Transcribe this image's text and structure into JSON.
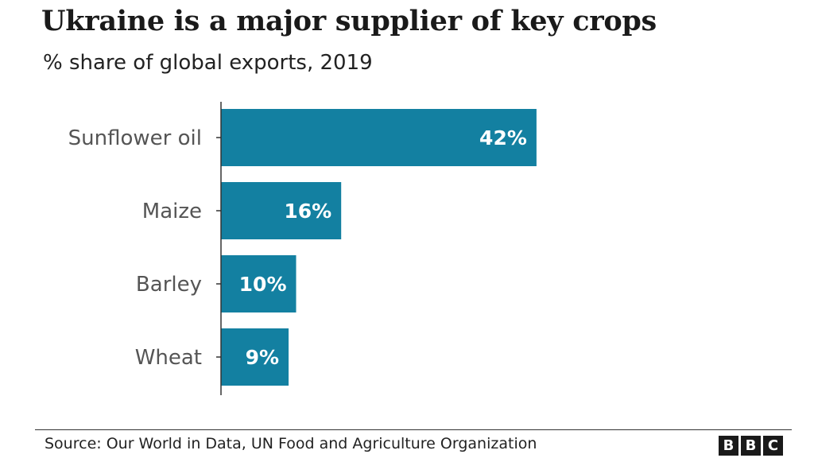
{
  "header": {
    "title": "Ukraine is a major supplier of key crops",
    "subtitle": "% share of global exports, 2019"
  },
  "footer": {
    "source": "Source: Our World in Data, UN Food and Agriculture Organization",
    "logo_letters": [
      "B",
      "B",
      "C"
    ]
  },
  "colors": {
    "bar": "#1380A1",
    "axis": "#333333",
    "label": "#555555"
  },
  "chart_data": {
    "type": "bar",
    "orientation": "horizontal",
    "title": "Ukraine is a major supplier of key crops",
    "subtitle": "% share of global exports, 2019",
    "categories": [
      "Sunflower oil",
      "Maize",
      "Barley",
      "Wheat"
    ],
    "values": [
      42,
      16,
      10,
      9
    ],
    "value_labels": [
      "42%",
      "16%",
      "10%",
      "9%"
    ],
    "xlim": [
      0,
      100
    ],
    "grid": false,
    "legend": "none"
  }
}
